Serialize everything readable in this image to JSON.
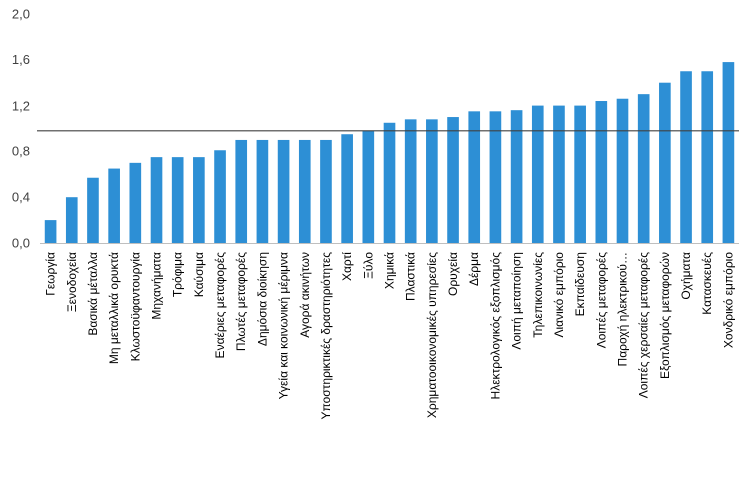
{
  "chart_data": {
    "type": "bar",
    "categories": [
      "Γεωργία",
      "Ξενοδοχεία",
      "Βασικά μέταλλα",
      "Μη μεταλλικά ορυκτά",
      "Κλωστοϋφαντουργία",
      "Μηχανήματα",
      "Τρόφιμα",
      "Καύσιμα",
      "Εναέριες μεταφορές",
      "Πλωτές μεταφορές",
      "Δημόσια διοίκηση",
      "Υγεία και κοινωνική μέριμνα",
      "Αγορά ακινήτων",
      "Υποστηρικτικές δραστηριότητες",
      "Χαρτί",
      "Ξύλο",
      "Χημικά",
      "Πλαστικά",
      "Χρηματοοικονομικές υπηρεσίες",
      "Ορυχεία",
      "Δέρμα",
      "Ηλεκτρολογικός εξοπλισμός",
      "Λοιπή μεταποίηση",
      "Τηλεπικοινωνίες",
      "Λιανικό εμπόριο",
      "Εκπαίδευση",
      "Λοιπές μεταφορές",
      "Παροχή ηλεκτρικού…",
      "Λοιπές χερσαίες μεταφορές",
      "Εξοπλισμός μεταφορών",
      "Οχήματα",
      "Κατασκευές",
      "Χονδρικό εμπόριο"
    ],
    "values": [
      0.2,
      0.4,
      0.57,
      0.65,
      0.7,
      0.75,
      0.75,
      0.75,
      0.81,
      0.9,
      0.9,
      0.9,
      0.9,
      0.9,
      0.95,
      0.98,
      1.05,
      1.08,
      1.08,
      1.1,
      1.15,
      1.15,
      1.16,
      1.2,
      1.2,
      1.2,
      1.24,
      1.26,
      1.3,
      1.4,
      1.5,
      1.5,
      1.58
    ],
    "yticks": [
      "0,0",
      "0,4",
      "0,8",
      "1,2",
      "1,6",
      "2,0"
    ],
    "ylim": [
      0,
      2.0
    ],
    "reference_line": 0.98,
    "bar_color": "#2d8fd5",
    "grid": false,
    "legend": "none",
    "title": "",
    "xlabel": "",
    "ylabel": ""
  }
}
